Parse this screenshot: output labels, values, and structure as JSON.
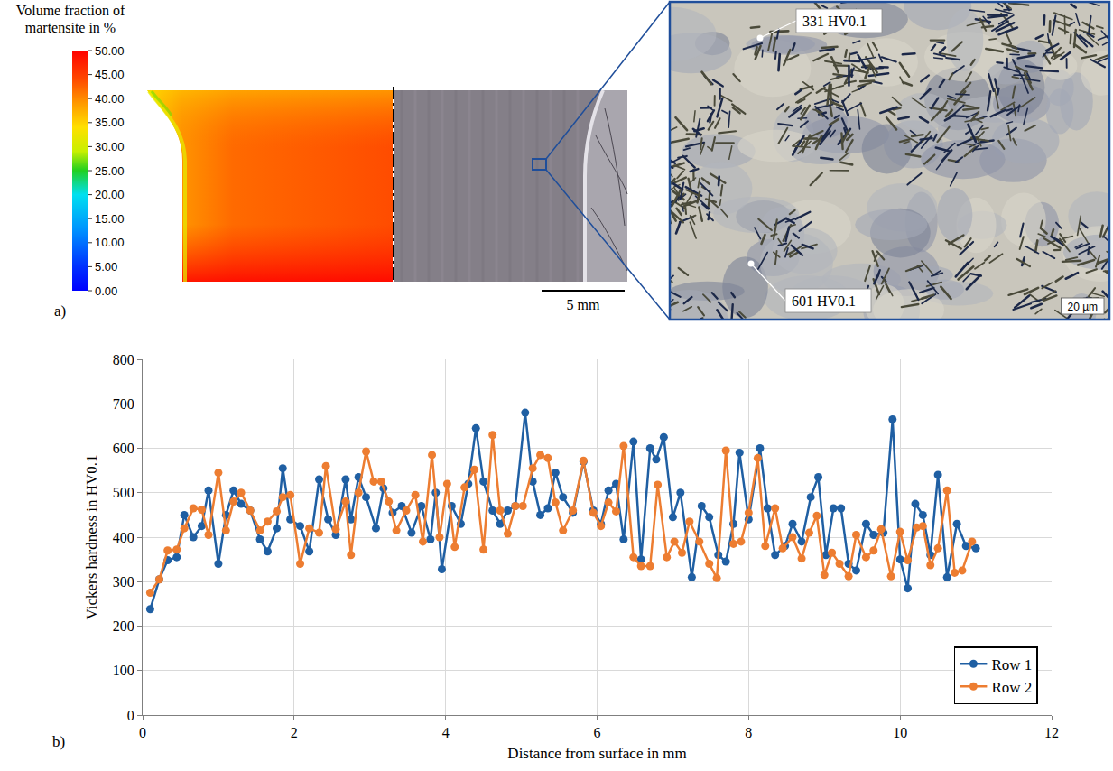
{
  "panel_a": {
    "label": "a)",
    "colorbar": {
      "title": "Volume fraction of martensite in %",
      "range": [
        0,
        50
      ],
      "ticks": [
        {
          "value": 0,
          "label": "0.00"
        },
        {
          "value": 5,
          "label": "5.00"
        },
        {
          "value": 10,
          "label": "10.00"
        },
        {
          "value": 15,
          "label": "15.00"
        },
        {
          "value": 20,
          "label": "20.00"
        },
        {
          "value": 25,
          "label": "25.00"
        },
        {
          "value": 30,
          "label": "30.00"
        },
        {
          "value": 35,
          "label": "35.00"
        },
        {
          "value": 40,
          "label": "40.00"
        },
        {
          "value": 45,
          "label": "45.00"
        },
        {
          "value": 50,
          "label": "50.00"
        }
      ]
    },
    "macro_scale": "5 mm",
    "micro_scale": "20 µm",
    "annotations": [
      "331 HV0.1",
      "601 HV0.1"
    ]
  },
  "panel_b": {
    "label": "b)"
  },
  "chart_data": {
    "type": "line",
    "x_label": "Distance from surface in mm",
    "y_label": "Vickers hardness in HV0.1",
    "xlim": [
      0,
      12
    ],
    "xticks": [
      0,
      2,
      4,
      6,
      8,
      10,
      12
    ],
    "ylim": [
      0,
      800
    ],
    "yticks": [
      0,
      100,
      200,
      300,
      400,
      500,
      600,
      700,
      800
    ],
    "grid": true,
    "legend": "lower right",
    "marker": "circle",
    "line_style": "solid",
    "series": [
      {
        "name": "Row 1",
        "color": "#1f5fa3",
        "x": [
          0.1,
          0.22,
          0.33,
          0.45,
          0.55,
          0.67,
          0.78,
          0.87,
          1.0,
          1.1,
          1.2,
          1.3,
          1.42,
          1.55,
          1.65,
          1.77,
          1.85,
          1.95,
          2.08,
          2.2,
          2.33,
          2.45,
          2.55,
          2.68,
          2.75,
          2.85,
          2.95,
          3.08,
          3.18,
          3.3,
          3.42,
          3.55,
          3.68,
          3.8,
          3.87,
          3.95,
          4.08,
          4.2,
          4.3,
          4.4,
          4.5,
          4.62,
          4.72,
          4.82,
          4.92,
          5.05,
          5.15,
          5.25,
          5.35,
          5.45,
          5.55,
          5.68,
          5.82,
          5.95,
          6.05,
          6.15,
          6.25,
          6.35,
          6.48,
          6.58,
          6.7,
          6.78,
          6.88,
          7.0,
          7.1,
          7.25,
          7.38,
          7.48,
          7.6,
          7.7,
          7.8,
          7.88,
          8.0,
          8.15,
          8.25,
          8.35,
          8.48,
          8.58,
          8.7,
          8.82,
          8.92,
          9.02,
          9.12,
          9.22,
          9.32,
          9.42,
          9.55,
          9.65,
          9.78,
          9.9,
          10.0,
          10.1,
          10.2,
          10.3,
          10.4,
          10.5,
          10.62,
          10.75,
          10.87,
          11.0
        ],
        "values": [
          238,
          305,
          348,
          355,
          450,
          400,
          425,
          505,
          340,
          450,
          505,
          475,
          460,
          395,
          368,
          420,
          555,
          440,
          425,
          368,
          530,
          440,
          405,
          530,
          440,
          535,
          490,
          420,
          510,
          455,
          470,
          410,
          470,
          395,
          500,
          328,
          470,
          430,
          520,
          645,
          525,
          460,
          430,
          460,
          470,
          680,
          525,
          450,
          465,
          545,
          490,
          455,
          570,
          460,
          430,
          505,
          520,
          395,
          615,
          350,
          600,
          575,
          625,
          445,
          500,
          310,
          470,
          445,
          360,
          345,
          430,
          590,
          440,
          600,
          465,
          360,
          380,
          430,
          390,
          490,
          535,
          360,
          465,
          465,
          340,
          325,
          430,
          405,
          410,
          665,
          350,
          285,
          475,
          450,
          360,
          540,
          310,
          430,
          380,
          375
        ]
      },
      {
        "name": "Row 2",
        "color": "#ed7d31",
        "x": [
          0.1,
          0.22,
          0.33,
          0.45,
          0.55,
          0.67,
          0.78,
          0.87,
          1.0,
          1.1,
          1.2,
          1.3,
          1.42,
          1.55,
          1.65,
          1.77,
          1.85,
          1.95,
          2.08,
          2.2,
          2.33,
          2.42,
          2.55,
          2.68,
          2.75,
          2.85,
          2.95,
          3.05,
          3.15,
          3.25,
          3.35,
          3.48,
          3.6,
          3.7,
          3.82,
          3.92,
          4.02,
          4.12,
          4.25,
          4.38,
          4.5,
          4.62,
          4.72,
          4.82,
          4.92,
          5.02,
          5.15,
          5.25,
          5.35,
          5.45,
          5.55,
          5.68,
          5.82,
          5.95,
          6.05,
          6.15,
          6.25,
          6.35,
          6.48,
          6.58,
          6.7,
          6.8,
          6.92,
          7.02,
          7.12,
          7.22,
          7.35,
          7.48,
          7.58,
          7.7,
          7.8,
          7.9,
          8.0,
          8.12,
          8.22,
          8.35,
          8.45,
          8.58,
          8.7,
          8.8,
          8.9,
          9.0,
          9.1,
          9.2,
          9.32,
          9.42,
          9.55,
          9.65,
          9.75,
          9.88,
          10.0,
          10.1,
          10.22,
          10.3,
          10.4,
          10.5,
          10.62,
          10.72,
          10.82,
          10.95
        ],
        "values": [
          275,
          305,
          370,
          372,
          420,
          465,
          462,
          405,
          545,
          415,
          480,
          500,
          460,
          415,
          435,
          458,
          490,
          495,
          340,
          420,
          410,
          560,
          418,
          480,
          360,
          500,
          593,
          525,
          525,
          480,
          415,
          460,
          495,
          390,
          585,
          400,
          520,
          378,
          512,
          552,
          372,
          630,
          460,
          408,
          470,
          470,
          555,
          585,
          578,
          478,
          415,
          460,
          572,
          455,
          425,
          478,
          458,
          605,
          355,
          335,
          335,
          518,
          355,
          390,
          365,
          435,
          390,
          340,
          308,
          595,
          385,
          390,
          455,
          578,
          380,
          465,
          375,
          400,
          352,
          410,
          448,
          315,
          365,
          340,
          312,
          405,
          355,
          370,
          418,
          312,
          412,
          348,
          422,
          425,
          337,
          375,
          505,
          320,
          325,
          390
        ]
      }
    ]
  }
}
